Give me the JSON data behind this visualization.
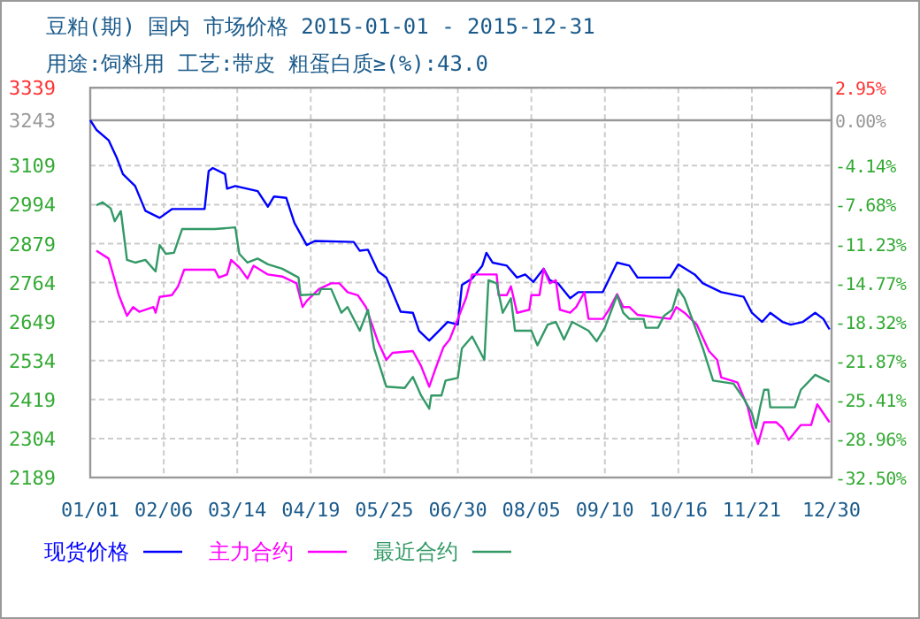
{
  "chart_data": {
    "type": "line",
    "title": "豆粕(期) 国内 市场价格 2015-01-01 - 2015-12-31",
    "subtitle": "用途:饲料用 工艺:带皮 粗蛋白质≥(%):43.0",
    "xlim": [
      "2015-01-01",
      "2015-12-30"
    ],
    "xticks": [
      {
        "value": "2015-01-01",
        "label": "01/01"
      },
      {
        "value": "2015-02-06",
        "label": "02/06"
      },
      {
        "value": "2015-03-14",
        "label": "03/14"
      },
      {
        "value": "2015-04-19",
        "label": "04/19"
      },
      {
        "value": "2015-05-25",
        "label": "05/25"
      },
      {
        "value": "2015-06-30",
        "label": "06/30"
      },
      {
        "value": "2015-08-05",
        "label": "08/05"
      },
      {
        "value": "2015-09-10",
        "label": "09/10"
      },
      {
        "value": "2015-10-16",
        "label": "10/16"
      },
      {
        "value": "2015-11-21",
        "label": "11/21"
      },
      {
        "value": "2015-12-30",
        "label": "12/30"
      }
    ],
    "ylim": [
      2189,
      3339
    ],
    "yticks": [
      2189,
      2304,
      2419,
      2534,
      2649,
      2764,
      2879,
      2994,
      3109,
      3243,
      3339
    ],
    "y2lim": [
      -32.5,
      2.95
    ],
    "y2ticks": [
      {
        "value": -32.5,
        "label": "-32.50%"
      },
      {
        "value": -28.96,
        "label": "-28.96%"
      },
      {
        "value": -25.41,
        "label": "-25.41%"
      },
      {
        "value": -21.87,
        "label": "-21.87%"
      },
      {
        "value": -18.32,
        "label": "-18.32%"
      },
      {
        "value": -14.77,
        "label": "-14.77%"
      },
      {
        "value": -11.23,
        "label": "-11.23%"
      },
      {
        "value": -7.68,
        "label": "-7.68%"
      },
      {
        "value": -4.14,
        "label": "-4.14%"
      },
      {
        "value": 0,
        "label": "0.00%"
      },
      {
        "value": 2.95,
        "label": "2.95%"
      }
    ],
    "ref_lines": [
      {
        "axis": "y",
        "value": 3243,
        "color": "#999999"
      }
    ],
    "grid": true,
    "legend": "bottom",
    "line_style": "solid",
    "series": [
      {
        "name": "现货价格",
        "color": "#0000ff",
        "x": [
          "2015-01-01",
          "2015-01-04",
          "2015-01-10",
          "2015-01-14",
          "2015-01-17",
          "2015-01-23",
          "2015-01-28",
          "2015-02-04",
          "2015-02-10",
          "2015-02-26",
          "2015-02-28",
          "2015-03-02",
          "2015-03-08",
          "2015-03-09",
          "2015-03-13",
          "2015-03-24",
          "2015-03-29",
          "2015-04-01",
          "2015-04-07",
          "2015-04-11",
          "2015-04-17",
          "2015-04-21",
          "2015-05-10",
          "2015-05-13",
          "2015-05-17",
          "2015-05-22",
          "2015-05-26",
          "2015-05-29",
          "2015-06-02",
          "2015-06-08",
          "2015-06-11",
          "2015-06-16",
          "2015-06-20",
          "2015-06-25",
          "2015-06-30",
          "2015-07-02",
          "2015-07-07",
          "2015-07-12",
          "2015-07-14",
          "2015-07-17",
          "2015-07-24",
          "2015-07-29",
          "2015-08-02",
          "2015-08-06",
          "2015-08-11",
          "2015-08-14",
          "2015-08-18",
          "2015-08-24",
          "2015-08-28",
          "2015-09-09",
          "2015-09-16",
          "2015-09-22",
          "2015-09-26",
          "2015-10-12",
          "2015-10-16",
          "2015-10-24",
          "2015-10-28",
          "2015-11-06",
          "2015-11-17",
          "2015-11-21",
          "2015-11-26",
          "2015-11-30",
          "2015-12-06",
          "2015-12-10",
          "2015-12-16",
          "2015-12-22",
          "2015-12-26",
          "2015-12-29"
        ],
        "values": [
          3243,
          3215,
          3184,
          3132,
          3084,
          3049,
          2976,
          2955,
          2981,
          2981,
          3093,
          3102,
          3084,
          3041,
          3049,
          3034,
          2988,
          3018,
          3014,
          2940,
          2875,
          2887,
          2884,
          2858,
          2861,
          2797,
          2779,
          2736,
          2678,
          2675,
          2622,
          2593,
          2617,
          2648,
          2640,
          2757,
          2776,
          2814,
          2852,
          2823,
          2814,
          2779,
          2788,
          2766,
          2805,
          2771,
          2762,
          2718,
          2736,
          2736,
          2823,
          2814,
          2779,
          2779,
          2818,
          2788,
          2762,
          2736,
          2722,
          2675,
          2648,
          2675,
          2648,
          2640,
          2648,
          2675,
          2657,
          2626
        ]
      },
      {
        "name": "主力合约",
        "color": "#ff00ff",
        "x": [
          "2015-01-04",
          "2015-01-10",
          "2015-01-13",
          "2015-01-15",
          "2015-01-19",
          "2015-01-22",
          "2015-01-25",
          "2015-02-01",
          "2015-02-02",
          "2015-02-04",
          "2015-02-10",
          "2015-02-13",
          "2015-02-16",
          "2015-03-03",
          "2015-03-05",
          "2015-03-09",
          "2015-03-11",
          "2015-03-15",
          "2015-03-19",
          "2015-03-22",
          "2015-03-29",
          "2015-04-05",
          "2015-04-12",
          "2015-04-15",
          "2015-04-17",
          "2015-04-23",
          "2015-04-29",
          "2015-05-03",
          "2015-05-07",
          "2015-05-12",
          "2015-05-16",
          "2015-05-19",
          "2015-05-22",
          "2015-05-26",
          "2015-05-29",
          "2015-06-08",
          "2015-06-12",
          "2015-06-16",
          "2015-06-19",
          "2015-06-23",
          "2015-06-26",
          "2015-06-30",
          "2015-07-04",
          "2015-07-07",
          "2015-07-19",
          "2015-07-20",
          "2015-07-24",
          "2015-07-26",
          "2015-07-29",
          "2015-08-04",
          "2015-08-05",
          "2015-08-09",
          "2015-08-11",
          "2015-08-14",
          "2015-08-17",
          "2015-08-19",
          "2015-08-24",
          "2015-08-27",
          "2015-08-31",
          "2015-09-02",
          "2015-09-09",
          "2015-09-12",
          "2015-09-16",
          "2015-09-19",
          "2015-09-22",
          "2015-09-26",
          "2015-10-12",
          "2015-10-15",
          "2015-10-19",
          "2015-10-25",
          "2015-10-31",
          "2015-11-04",
          "2015-11-06",
          "2015-11-11",
          "2015-11-14",
          "2015-11-19",
          "2015-11-21",
          "2015-11-24",
          "2015-11-27",
          "2015-12-03",
          "2015-12-06",
          "2015-12-09",
          "2015-12-15",
          "2015-12-20",
          "2015-12-23",
          "2015-12-29"
        ],
        "values": [
          2858,
          2835,
          2771,
          2727,
          2666,
          2692,
          2678,
          2692,
          2675,
          2722,
          2727,
          2753,
          2802,
          2802,
          2779,
          2788,
          2831,
          2809,
          2776,
          2814,
          2788,
          2782,
          2762,
          2692,
          2710,
          2745,
          2762,
          2762,
          2736,
          2727,
          2692,
          2640,
          2588,
          2536,
          2557,
          2562,
          2518,
          2457,
          2509,
          2574,
          2596,
          2657,
          2718,
          2788,
          2788,
          2727,
          2727,
          2753,
          2675,
          2684,
          2727,
          2727,
          2805,
          2762,
          2771,
          2684,
          2675,
          2692,
          2736,
          2657,
          2657,
          2684,
          2730,
          2692,
          2692,
          2669,
          2657,
          2692,
          2675,
          2640,
          2562,
          2536,
          2484,
          2475,
          2469,
          2396,
          2344,
          2288,
          2352,
          2352,
          2335,
          2300,
          2344,
          2344,
          2405,
          2352
        ]
      },
      {
        "name": "最近合约",
        "color": "#339966",
        "x": [
          "2015-01-04",
          "2015-01-07",
          "2015-01-11",
          "2015-01-13",
          "2015-01-16",
          "2015-01-19",
          "2015-01-23",
          "2015-01-28",
          "2015-02-02",
          "2015-02-04",
          "2015-02-07",
          "2015-02-11",
          "2015-02-15",
          "2015-03-03",
          "2015-03-13",
          "2015-03-15",
          "2015-03-19",
          "2015-03-24",
          "2015-03-29",
          "2015-04-05",
          "2015-04-13",
          "2015-04-14",
          "2015-04-23",
          "2015-04-24",
          "2015-04-29",
          "2015-05-04",
          "2015-05-07",
          "2015-05-13",
          "2015-05-17",
          "2015-05-20",
          "2015-05-26",
          "2015-06-04",
          "2015-06-08",
          "2015-06-12",
          "2015-06-16",
          "2015-06-17",
          "2015-06-22",
          "2015-06-24",
          "2015-06-30",
          "2015-07-02",
          "2015-07-07",
          "2015-07-13",
          "2015-07-15",
          "2015-07-19",
          "2015-07-22",
          "2015-07-26",
          "2015-07-28",
          "2015-08-05",
          "2015-08-08",
          "2015-08-13",
          "2015-08-17",
          "2015-08-21",
          "2015-08-25",
          "2015-09-02",
          "2015-09-06",
          "2015-09-10",
          "2015-09-16",
          "2015-09-19",
          "2015-09-22",
          "2015-09-29",
          "2015-09-30",
          "2015-10-06",
          "2015-10-09",
          "2015-10-13",
          "2015-10-16",
          "2015-10-19",
          "2015-10-28",
          "2015-11-02",
          "2015-11-12",
          "2015-11-17",
          "2015-11-21",
          "2015-11-23",
          "2015-11-25",
          "2015-11-27",
          "2015-11-29",
          "2015-11-30",
          "2015-12-12",
          "2015-12-15",
          "2015-12-22",
          "2015-12-29"
        ],
        "values": [
          2992,
          3001,
          2983,
          2945,
          2975,
          2831,
          2823,
          2831,
          2797,
          2875,
          2849,
          2852,
          2922,
          2922,
          2927,
          2849,
          2823,
          2835,
          2818,
          2805,
          2779,
          2727,
          2730,
          2745,
          2745,
          2675,
          2692,
          2622,
          2684,
          2570,
          2457,
          2453,
          2486,
          2431,
          2392,
          2431,
          2431,
          2475,
          2483,
          2570,
          2605,
          2536,
          2771,
          2762,
          2675,
          2718,
          2622,
          2622,
          2579,
          2640,
          2648,
          2596,
          2648,
          2622,
          2591,
          2631,
          2727,
          2675,
          2657,
          2657,
          2631,
          2631,
          2666,
          2684,
          2745,
          2718,
          2570,
          2475,
          2466,
          2422,
          2379,
          2335,
          2396,
          2448,
          2448,
          2396,
          2396,
          2448,
          2492,
          2471
        ]
      }
    ]
  }
}
